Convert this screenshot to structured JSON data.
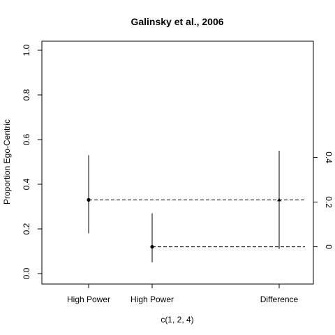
{
  "chart_data": {
    "type": "scatter",
    "title": "Galinsky et al., 2006",
    "xlabel": "c(1, 2, 4)",
    "ylabel": "Proportion Ego-Centric",
    "xlim": [
      0.6,
      4.6
    ],
    "ylim": [
      0,
      1.04
    ],
    "y_ticks": [
      0.0,
      0.2,
      0.4,
      0.6,
      0.8,
      1.0
    ],
    "y_tick_labels": [
      "0.0",
      "0.2",
      "0.4",
      "0.6",
      "0.8",
      "1.0"
    ],
    "right_ticks": [
      0,
      0.2,
      0.4
    ],
    "right_tick_labels": [
      "0",
      "0.2",
      "0.4"
    ],
    "right_zero_at_left": 0.12,
    "categories": [
      "High Power",
      "High Power",
      "Difference"
    ],
    "x": [
      1,
      2,
      4
    ],
    "points": [
      {
        "label": "High Power",
        "x": 1,
        "y": 0.33,
        "lo": 0.18,
        "hi": 0.53
      },
      {
        "label": "High Power",
        "x": 2,
        "y": 0.12,
        "lo": 0.05,
        "hi": 0.27
      }
    ],
    "difference": {
      "label": "Difference",
      "x": 4,
      "y": 0.21,
      "lo": -0.01,
      "hi": 0.43
    },
    "reference_lines": [
      {
        "y": 0.33,
        "style": "dashed"
      },
      {
        "y": 0.12,
        "style": "dashed"
      }
    ],
    "grid": false
  }
}
